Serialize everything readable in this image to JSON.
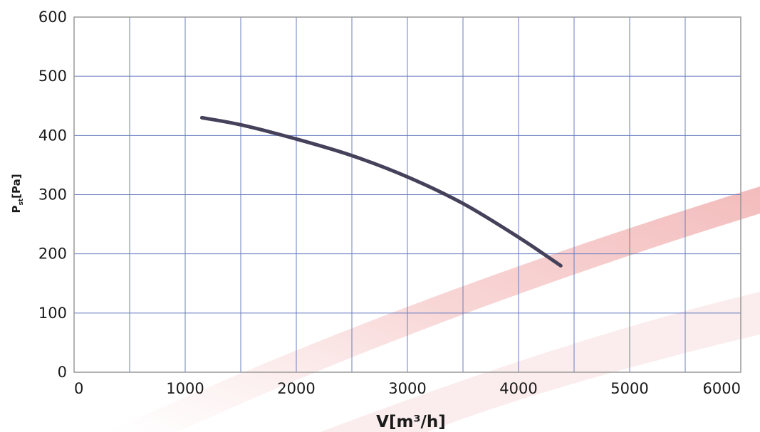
{
  "chart_data": {
    "type": "line",
    "xlabel": "V[m³/h]",
    "ylabel_main": "P",
    "ylabel_sub": "st",
    "ylabel_unit": "[Pa]",
    "xlim": [
      0,
      6000
    ],
    "ylim": [
      0,
      600
    ],
    "x_ticks": [
      "0",
      "1000",
      "2000",
      "3000",
      "4000",
      "5000",
      "6000"
    ],
    "y_ticks": [
      "0",
      "100",
      "200",
      "300",
      "400",
      "500",
      "600"
    ],
    "grid": true,
    "grid_step_x": 500,
    "grid_step_y": 100,
    "colors": {
      "line": "#46415a",
      "grid": "#6a7cc0",
      "axis": "#999999"
    },
    "series": [
      {
        "x": [
          1150,
          1500,
          2000,
          2500,
          3000,
          3500,
          4000,
          4380
        ],
        "y": [
          430,
          418,
          394,
          366,
          330,
          285,
          228,
          180
        ]
      }
    ]
  }
}
